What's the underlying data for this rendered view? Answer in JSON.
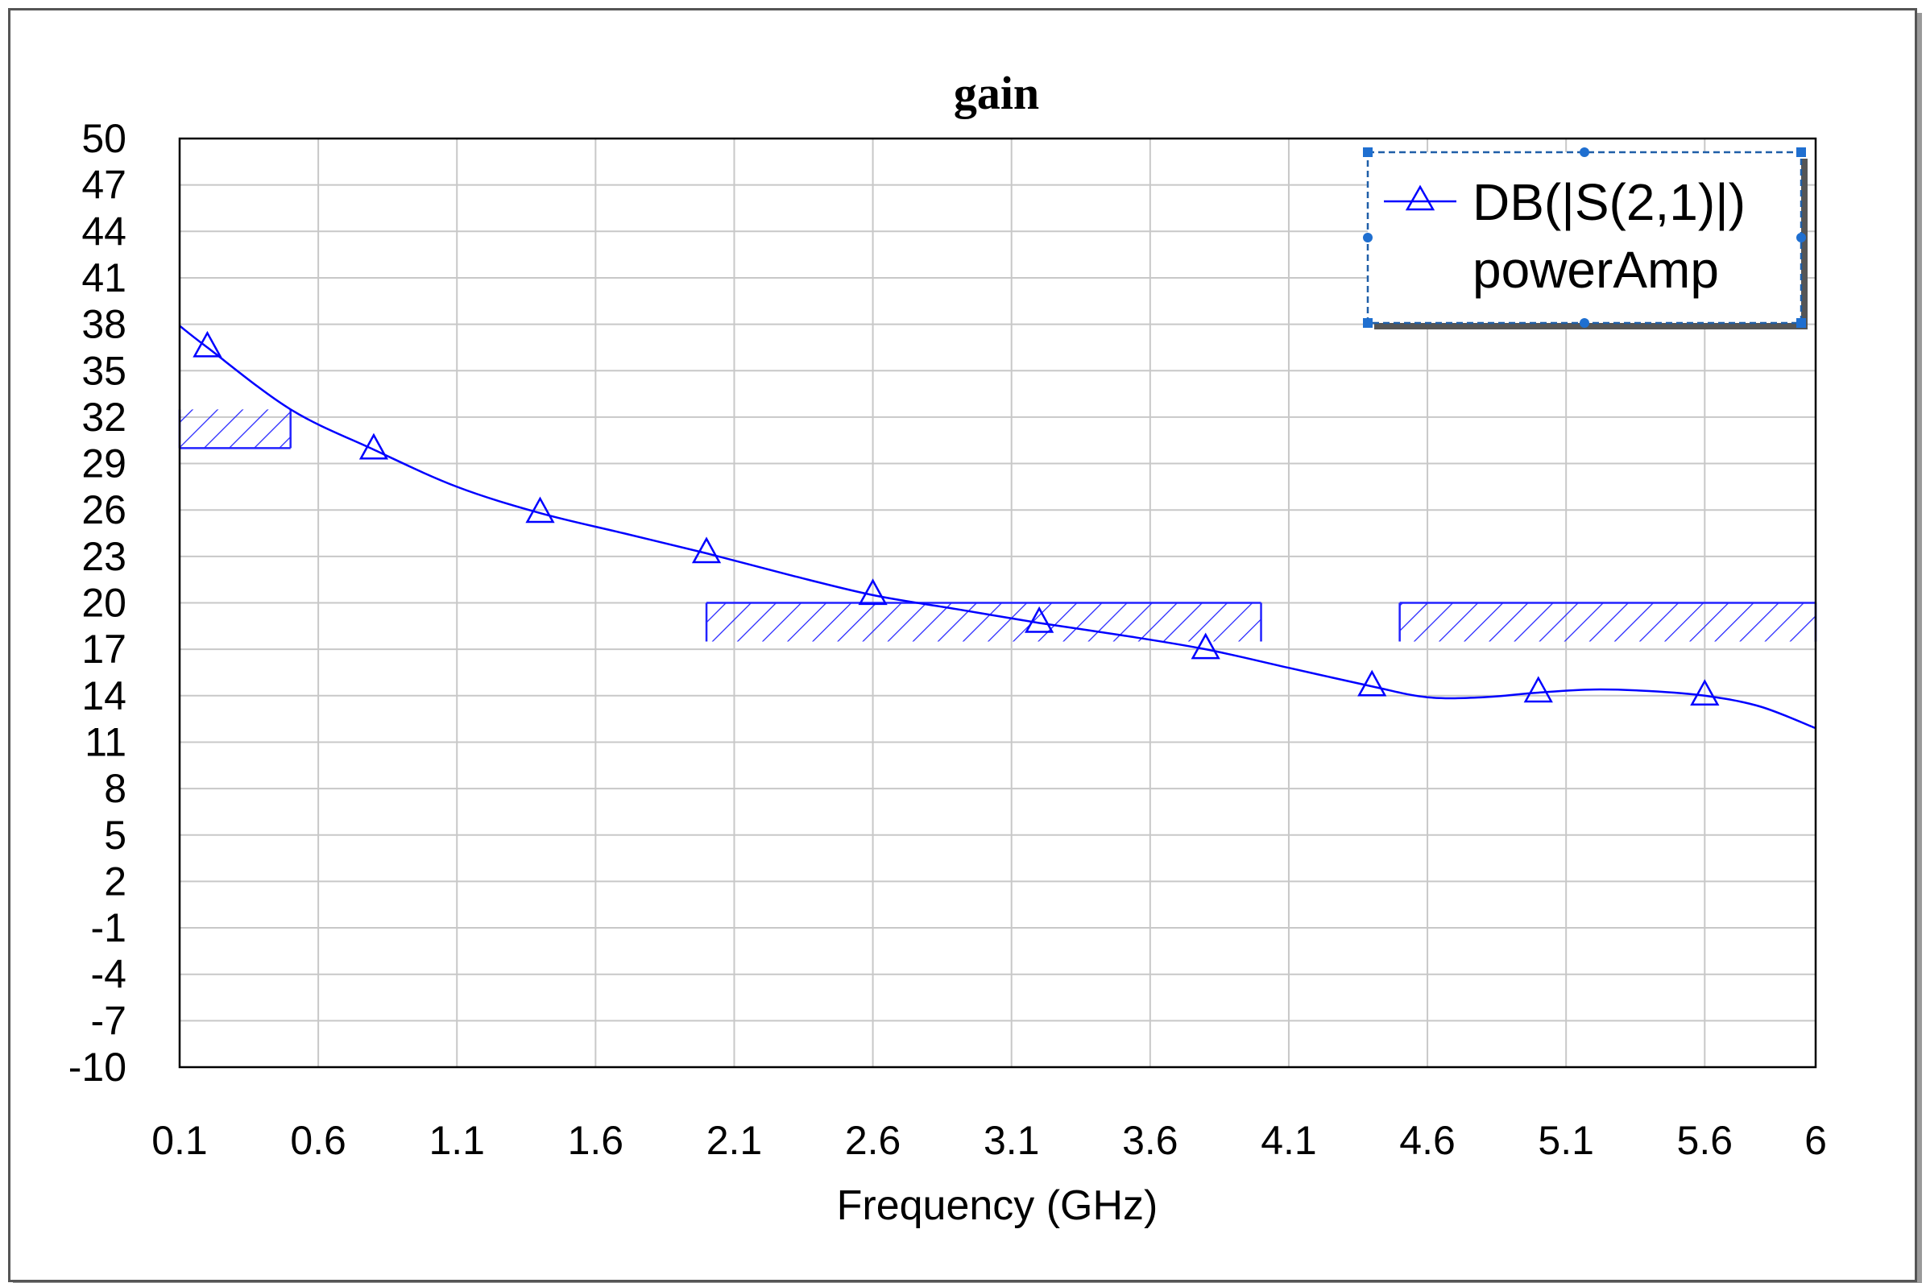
{
  "chart_data": {
    "type": "line",
    "title": "gain",
    "xlabel": "Frequency (GHz)",
    "ylabel": "",
    "xlim": [
      0.1,
      6
    ],
    "ylim": [
      -10,
      50
    ],
    "x_ticks": [
      "0.1",
      "0.6",
      "1.1",
      "1.6",
      "2.1",
      "2.6",
      "3.1",
      "3.6",
      "4.1",
      "4.6",
      "5.1",
      "5.6",
      "6"
    ],
    "y_ticks": [
      "50",
      "47",
      "44",
      "41",
      "38",
      "35",
      "32",
      "29",
      "26",
      "23",
      "20",
      "17",
      "14",
      "11",
      "8",
      "5",
      "2",
      "-1",
      "-4",
      "-7",
      "-10"
    ],
    "grid": true,
    "legend_position": "top-right",
    "series": [
      {
        "name": "DB(|S(2,1)|)",
        "name_line2": "powerAmp",
        "color": "#0000ff",
        "marker": "triangle",
        "x": [
          0.1,
          0.2,
          0.5,
          0.8,
          1.1,
          1.4,
          1.7,
          2.0,
          2.3,
          2.6,
          2.9,
          3.2,
          3.5,
          3.8,
          4.1,
          4.4,
          4.6,
          4.8,
          5.0,
          5.2,
          5.4,
          5.6,
          5.8,
          6.0
        ],
        "y": [
          37.9,
          36.5,
          32.5,
          29.9,
          27.5,
          25.8,
          24.5,
          23.2,
          21.8,
          20.5,
          19.6,
          18.7,
          17.9,
          17.0,
          15.8,
          14.6,
          13.9,
          13.9,
          14.2,
          14.4,
          14.3,
          14.0,
          13.3,
          11.9
        ],
        "marker_x": [
          0.2,
          0.8,
          1.4,
          2.0,
          2.6,
          3.2,
          3.8,
          4.4,
          5.0,
          5.6
        ],
        "marker_y": [
          36.5,
          29.9,
          25.8,
          23.2,
          20.5,
          18.7,
          17.0,
          14.6,
          14.2,
          14.0
        ]
      }
    ],
    "spec_regions": [
      {
        "x_start": 0.1,
        "x_end": 0.5,
        "y_value": 30,
        "hatch_side": "above"
      },
      {
        "x_start": 2.0,
        "x_end": 4.0,
        "y_value": 20,
        "hatch_side": "below"
      },
      {
        "x_start": 4.5,
        "x_end": 6.0,
        "y_value": 20,
        "hatch_side": "below"
      }
    ]
  }
}
